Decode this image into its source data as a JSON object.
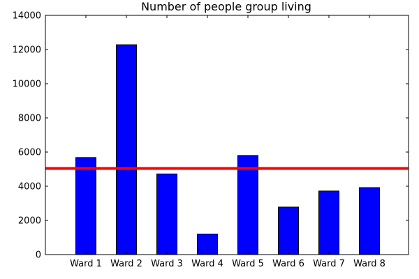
{
  "chart_data": {
    "type": "bar",
    "title": "Number of people group living",
    "xlabel": "",
    "ylabel": "",
    "categories": [
      "Ward 1",
      "Ward 2",
      "Ward 3",
      "Ward 4",
      "Ward 5",
      "Ward 6",
      "Ward 7",
      "Ward 8"
    ],
    "values": [
      5680,
      12280,
      4720,
      1200,
      5800,
      2780,
      3720,
      3920
    ],
    "ylim": [
      0,
      14000
    ],
    "yticks": [
      0,
      2000,
      4000,
      6000,
      8000,
      10000,
      12000,
      14000
    ],
    "reference_line": {
      "y": 5040,
      "color": "#ff0000"
    },
    "bar_color": "#0000ff",
    "grid": false,
    "legend": "none"
  }
}
